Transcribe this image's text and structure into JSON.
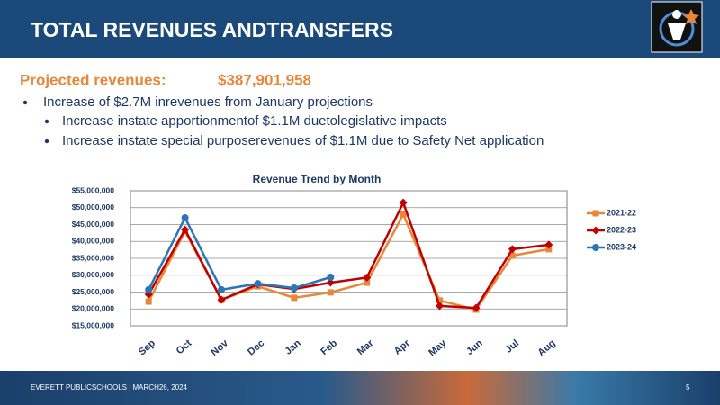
{
  "header": {
    "title": "TOTAL REVENUES ANDTRANSFERS"
  },
  "summary": {
    "label": "Projected revenues:",
    "amount": "$387,901,958"
  },
  "bullets": [
    "Increase of $2.7M inrevenues from January projections"
  ],
  "sub_bullets": [
    "Increase instate apportionmentof $1.1M duetolegislative impacts",
    "Increase instate special purposerevenues of $1.1M due to Safety Net application"
  ],
  "footer": {
    "text": "EVERETT PUBLICSCHOOLS | MARCH26, 2024",
    "page": "5"
  },
  "chart_data": {
    "type": "line",
    "title": "Revenue Trend by Month",
    "categories": [
      "Sep",
      "Oct",
      "Nov",
      "Dec",
      "Jan",
      "Feb",
      "Mar",
      "Apr",
      "May",
      "Jun",
      "Jul",
      "Aug"
    ],
    "series": [
      {
        "name": "2021-22",
        "color": "#e8873a",
        "marker": "square",
        "values": [
          22200000,
          43000000,
          22700000,
          26700000,
          23300000,
          24900000,
          27800000,
          48000000,
          22500000,
          19800000,
          35800000,
          37700000
        ]
      },
      {
        "name": "2022-23",
        "color": "#c00000",
        "marker": "diamond",
        "values": [
          24300000,
          43500000,
          22700000,
          27300000,
          25900000,
          27800000,
          29300000,
          51500000,
          20900000,
          20300000,
          37700000,
          39000000
        ]
      },
      {
        "name": "2023-24",
        "color": "#2e75b6",
        "marker": "circle",
        "values": [
          25700000,
          47000000,
          25700000,
          27500000,
          26200000,
          29400000,
          null,
          null,
          null,
          null,
          null,
          null
        ]
      }
    ],
    "ylim": [
      15000000,
      55000000
    ],
    "yticks": [
      {
        "value": 15000000,
        "label": "$15,000,000"
      },
      {
        "value": 20000000,
        "label": "$20,000,000"
      },
      {
        "value": 25000000,
        "label": "$25,000,000"
      },
      {
        "value": 30000000,
        "label": "$30,000,000"
      },
      {
        "value": 35000000,
        "label": "$35,000,000"
      },
      {
        "value": 40000000,
        "label": "$40,000,000"
      },
      {
        "value": 45000000,
        "label": "$45,000,000"
      },
      {
        "value": 50000000,
        "label": "$50,000,000"
      },
      {
        "value": 55000000,
        "label": "$55,000,000"
      }
    ],
    "grid": true,
    "legend": "right"
  }
}
